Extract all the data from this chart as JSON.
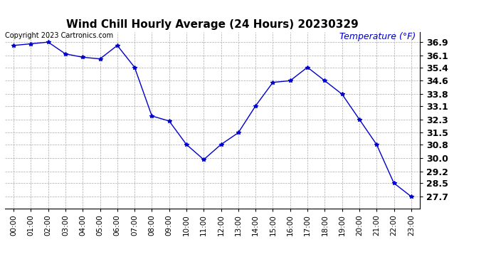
{
  "title": "Wind Chill Hourly Average (24 Hours) 20230329",
  "ylabel": "Temperature (°F)",
  "copyright_text": "Copyright 2023 Cartronics.com",
  "hours": [
    "00:00",
    "01:00",
    "02:00",
    "03:00",
    "04:00",
    "05:00",
    "06:00",
    "07:00",
    "08:00",
    "09:00",
    "10:00",
    "11:00",
    "12:00",
    "13:00",
    "14:00",
    "15:00",
    "16:00",
    "17:00",
    "18:00",
    "19:00",
    "20:00",
    "21:00",
    "22:00",
    "23:00"
  ],
  "values": [
    36.7,
    36.8,
    36.9,
    36.2,
    36.0,
    35.9,
    36.7,
    35.4,
    32.5,
    32.2,
    30.8,
    29.9,
    30.8,
    31.5,
    33.1,
    34.5,
    34.6,
    35.4,
    34.6,
    33.8,
    32.3,
    30.8,
    28.5,
    27.7
  ],
  "line_color": "#0000cc",
  "marker": "*",
  "marker_size": 4,
  "background_color": "#ffffff",
  "grid_color": "#aaaaaa",
  "ylim_min": 27.0,
  "ylim_max": 37.5,
  "yticks": [
    27.7,
    28.5,
    29.2,
    30.0,
    30.8,
    31.5,
    32.3,
    33.1,
    33.8,
    34.6,
    35.4,
    36.1,
    36.9
  ],
  "title_fontsize": 11,
  "ylabel_fontsize": 9,
  "tick_fontsize": 7.5,
  "copyright_fontsize": 7,
  "ytick_fontsize": 9
}
